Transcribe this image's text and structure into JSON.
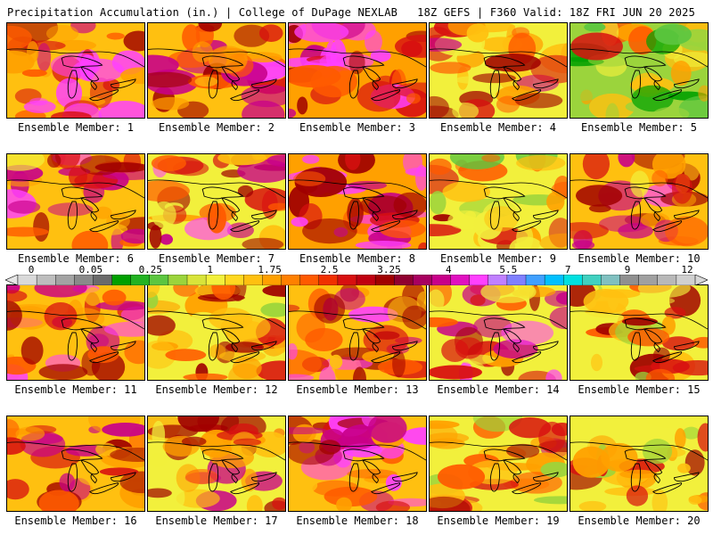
{
  "header": {
    "left": "Precipitation Accumulation (in.) | College of DuPage NEXLAB",
    "right": "18Z GEFS | F360 Valid: 18Z FRI JUN 20 2025"
  },
  "member_prefix": "Ensemble Member:",
  "members": [
    "1",
    "2",
    "3",
    "4",
    "5",
    "6",
    "7",
    "8",
    "9",
    "10",
    "11",
    "12",
    "13",
    "14",
    "15",
    "16",
    "17",
    "18",
    "19",
    "20"
  ],
  "colorbar": {
    "ticks": [
      "0",
      "0.05",
      "0.25",
      "1",
      "1.75",
      "2.5",
      "3.25",
      "4",
      "5.5",
      "7",
      "9",
      "12"
    ],
    "colors": [
      "#d9d9d9",
      "#bdbdbd",
      "#a3a3a3",
      "#8a8a8a",
      "#6b6b6b",
      "#00a000",
      "#22b222",
      "#5cc640",
      "#9bd43c",
      "#d8e43a",
      "#f2f03c",
      "#ffd820",
      "#ffc010",
      "#ffa000",
      "#ff8000",
      "#ff5a00",
      "#f03000",
      "#d81010",
      "#c00010",
      "#a00000",
      "#900030",
      "#a80060",
      "#c8008a",
      "#e010c0",
      "#ff40ff",
      "#c080ff",
      "#8080ff",
      "#40a0ff",
      "#00c0ff",
      "#00e0e0",
      "#40d0c0",
      "#80c0c0",
      "#909090",
      "#a0a0a0",
      "#b8b8b8",
      "#d0d0d0"
    ]
  },
  "field_palette": [
    "#00a000",
    "#5cc640",
    "#9bd43c",
    "#f2f03c",
    "#ffc010",
    "#ffa000",
    "#ff5a00",
    "#d81010",
    "#a00000",
    "#c8008a",
    "#ff40ff"
  ],
  "member_wetness": [
    0.72,
    0.62,
    0.78,
    0.55,
    0.3,
    0.62,
    0.58,
    0.82,
    0.42,
    0.6,
    0.62,
    0.5,
    0.68,
    0.58,
    0.48,
    0.62,
    0.55,
    0.68,
    0.5,
    0.45
  ]
}
